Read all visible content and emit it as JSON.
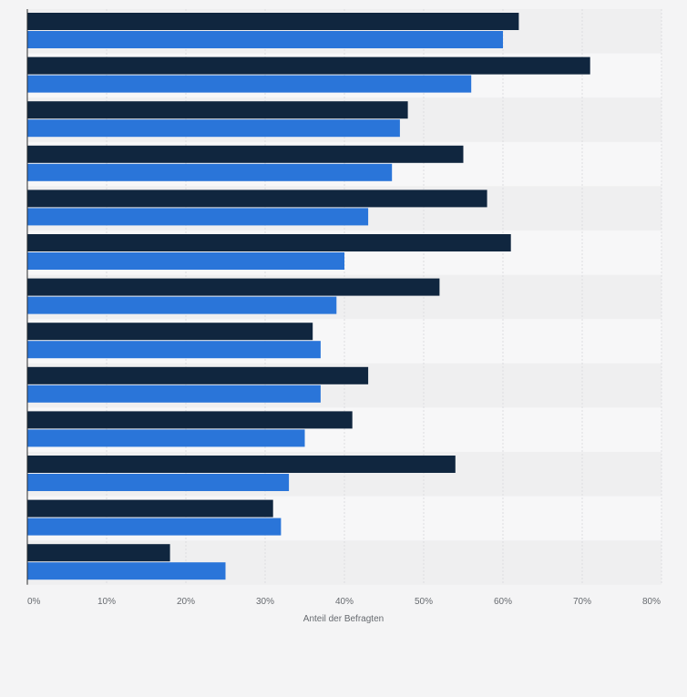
{
  "chart_data": {
    "type": "bar",
    "orientation": "horizontal",
    "title": "",
    "xlabel": "Anteil der Befragten",
    "ylabel": "",
    "xlim": [
      0,
      80
    ],
    "x_ticks": [
      "0%",
      "10%",
      "20%",
      "30%",
      "40%",
      "50%",
      "60%",
      "70%",
      "80%"
    ],
    "grid": true,
    "legend": "none",
    "categories": [
      "",
      "",
      "",
      "",
      "",
      "",
      "",
      "",
      "",
      "",
      "",
      "",
      ""
    ],
    "series": [
      {
        "color": "#10263f",
        "values": [
          62,
          71,
          48,
          55,
          58,
          61,
          52,
          36,
          43,
          41,
          54,
          31,
          18
        ]
      },
      {
        "color": "#2a75d9",
        "values": [
          60,
          56,
          47,
          46,
          43,
          40,
          39,
          37,
          37,
          35,
          33,
          32,
          25
        ]
      }
    ]
  },
  "colors": {
    "background": "#f4f4f5",
    "band_light": "#f7f7f8",
    "band_dark": "#efeff0",
    "grid": "#dcdcdf"
  }
}
